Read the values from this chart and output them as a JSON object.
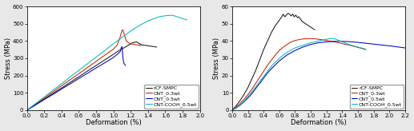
{
  "left_plot": {
    "xlabel": "Deformation (%)",
    "ylabel": "Stress (MPa)",
    "xlim": [
      0.0,
      2.0
    ],
    "ylim": [
      0,
      600
    ],
    "xticks": [
      0.0,
      0.2,
      0.4,
      0.6,
      0.8,
      1.0,
      1.2,
      1.4,
      1.6,
      1.8,
      2.0
    ],
    "yticks": [
      0,
      100,
      200,
      300,
      400,
      500,
      600
    ],
    "series": [
      {
        "label": "rCF-SMPC",
        "color": "#1a1a1a",
        "points": [
          [
            0.0,
            0
          ],
          [
            0.1,
            32
          ],
          [
            0.2,
            64
          ],
          [
            0.3,
            96
          ],
          [
            0.4,
            128
          ],
          [
            0.5,
            161
          ],
          [
            0.6,
            193
          ],
          [
            0.7,
            226
          ],
          [
            0.8,
            258
          ],
          [
            0.9,
            291
          ],
          [
            1.0,
            323
          ],
          [
            1.05,
            340
          ],
          [
            1.1,
            355
          ],
          [
            1.15,
            368
          ],
          [
            1.18,
            378
          ],
          [
            1.2,
            383
          ],
          [
            1.22,
            390
          ],
          [
            1.25,
            393
          ],
          [
            1.27,
            395
          ],
          [
            1.29,
            388
          ],
          [
            1.31,
            382
          ],
          [
            1.33,
            378
          ],
          [
            1.35,
            376
          ],
          [
            1.38,
            374
          ],
          [
            1.42,
            371
          ],
          [
            1.46,
            368
          ],
          [
            1.5,
            365
          ]
        ]
      },
      {
        "label": "CNT_0.3wt",
        "color": "#cc2200",
        "points": [
          [
            0.0,
            0
          ],
          [
            0.1,
            35
          ],
          [
            0.2,
            70
          ],
          [
            0.3,
            105
          ],
          [
            0.4,
            141
          ],
          [
            0.5,
            176
          ],
          [
            0.6,
            211
          ],
          [
            0.7,
            247
          ],
          [
            0.8,
            282
          ],
          [
            0.9,
            318
          ],
          [
            1.0,
            353
          ],
          [
            1.04,
            375
          ],
          [
            1.07,
            410
          ],
          [
            1.09,
            445
          ],
          [
            1.1,
            462
          ],
          [
            1.11,
            465
          ],
          [
            1.13,
            430
          ],
          [
            1.15,
            400
          ],
          [
            1.18,
            388
          ],
          [
            1.22,
            382
          ],
          [
            1.27,
            378
          ],
          [
            1.32,
            374
          ]
        ]
      },
      {
        "label": "CNT_0.5wt",
        "color": "#0000bb",
        "points": [
          [
            0.0,
            0
          ],
          [
            0.1,
            30
          ],
          [
            0.2,
            61
          ],
          [
            0.3,
            91
          ],
          [
            0.4,
            122
          ],
          [
            0.5,
            152
          ],
          [
            0.6,
            183
          ],
          [
            0.7,
            213
          ],
          [
            0.8,
            244
          ],
          [
            0.9,
            274
          ],
          [
            1.0,
            305
          ],
          [
            1.05,
            325
          ],
          [
            1.08,
            340
          ],
          [
            1.09,
            360
          ],
          [
            1.1,
            368
          ],
          [
            1.11,
            300
          ],
          [
            1.12,
            272
          ],
          [
            1.14,
            258
          ]
        ]
      },
      {
        "label": "CNT-COOH_0.5wt",
        "color": "#00bbbb",
        "points": [
          [
            0.0,
            0
          ],
          [
            0.1,
            38
          ],
          [
            0.2,
            76
          ],
          [
            0.3,
            115
          ],
          [
            0.4,
            153
          ],
          [
            0.5,
            192
          ],
          [
            0.6,
            230
          ],
          [
            0.7,
            268
          ],
          [
            0.8,
            307
          ],
          [
            0.9,
            345
          ],
          [
            1.0,
            384
          ],
          [
            1.1,
            422
          ],
          [
            1.2,
            458
          ],
          [
            1.3,
            490
          ],
          [
            1.4,
            516
          ],
          [
            1.5,
            536
          ],
          [
            1.55,
            542
          ],
          [
            1.6,
            546
          ],
          [
            1.65,
            548
          ],
          [
            1.68,
            549
          ],
          [
            1.7,
            546
          ],
          [
            1.72,
            543
          ],
          [
            1.75,
            538
          ],
          [
            1.8,
            530
          ],
          [
            1.85,
            522
          ]
        ]
      }
    ]
  },
  "right_plot": {
    "xlabel": "Deformation (%)",
    "ylabel": "Stress (MPa)",
    "xlim": [
      0.0,
      2.2
    ],
    "ylim": [
      0,
      60
    ],
    "xticks": [
      0.0,
      0.2,
      0.4,
      0.6,
      0.8,
      1.0,
      1.2,
      1.4,
      1.6,
      1.8,
      2.0,
      2.2
    ],
    "yticks": [
      0,
      10,
      20,
      30,
      40,
      50,
      60
    ],
    "series": [
      {
        "label": "rCF-SMPC",
        "color": "#1a1a1a",
        "points": [
          [
            0.0,
            0
          ],
          [
            0.05,
            2.5
          ],
          [
            0.1,
            5.5
          ],
          [
            0.15,
            9
          ],
          [
            0.2,
            13
          ],
          [
            0.25,
            18
          ],
          [
            0.3,
            23
          ],
          [
            0.35,
            29
          ],
          [
            0.4,
            35
          ],
          [
            0.45,
            40
          ],
          [
            0.5,
            45
          ],
          [
            0.55,
            49
          ],
          [
            0.6,
            52
          ],
          [
            0.63,
            54
          ],
          [
            0.65,
            55.5
          ],
          [
            0.67,
            54
          ],
          [
            0.69,
            55
          ],
          [
            0.71,
            56
          ],
          [
            0.73,
            55.5
          ],
          [
            0.75,
            54.5
          ],
          [
            0.77,
            55.5
          ],
          [
            0.79,
            54
          ],
          [
            0.81,
            55
          ],
          [
            0.83,
            53.5
          ],
          [
            0.85,
            54
          ],
          [
            0.87,
            52.5
          ],
          [
            0.9,
            51
          ],
          [
            0.95,
            49.5
          ],
          [
            1.0,
            48
          ],
          [
            1.05,
            46.5
          ]
        ]
      },
      {
        "label": "CNT_0.3wt",
        "color": "#cc2200",
        "points": [
          [
            0.0,
            0
          ],
          [
            0.05,
            1.8
          ],
          [
            0.1,
            3.8
          ],
          [
            0.15,
            6.2
          ],
          [
            0.2,
            9
          ],
          [
            0.25,
            12
          ],
          [
            0.3,
            15.5
          ],
          [
            0.35,
            19
          ],
          [
            0.4,
            22.5
          ],
          [
            0.45,
            26
          ],
          [
            0.5,
            29
          ],
          [
            0.55,
            32
          ],
          [
            0.6,
            34.5
          ],
          [
            0.65,
            36.5
          ],
          [
            0.7,
            38
          ],
          [
            0.75,
            39.5
          ],
          [
            0.8,
            40.3
          ],
          [
            0.85,
            40.8
          ],
          [
            0.9,
            41.2
          ],
          [
            0.95,
            41.3
          ],
          [
            1.0,
            41.4
          ],
          [
            1.05,
            41.3
          ],
          [
            1.1,
            41.0
          ],
          [
            1.15,
            40.7
          ],
          [
            1.2,
            40.3
          ],
          [
            1.3,
            39.5
          ],
          [
            1.4,
            38.5
          ],
          [
            1.5,
            37.5
          ],
          [
            1.6,
            36.3
          ],
          [
            1.7,
            35.0
          ]
        ]
      },
      {
        "label": "CNT_0.5wt",
        "color": "#0000bb",
        "points": [
          [
            0.0,
            0
          ],
          [
            0.05,
            1.2
          ],
          [
            0.1,
            2.8
          ],
          [
            0.15,
            4.8
          ],
          [
            0.2,
            7
          ],
          [
            0.25,
            9.5
          ],
          [
            0.3,
            12.5
          ],
          [
            0.35,
            15.5
          ],
          [
            0.4,
            18.5
          ],
          [
            0.45,
            21.5
          ],
          [
            0.5,
            24
          ],
          [
            0.6,
            28.5
          ],
          [
            0.7,
            32
          ],
          [
            0.8,
            34.5
          ],
          [
            0.9,
            36.5
          ],
          [
            1.0,
            38
          ],
          [
            1.1,
            39
          ],
          [
            1.2,
            39.5
          ],
          [
            1.3,
            39.8
          ],
          [
            1.4,
            39.8
          ],
          [
            1.5,
            39.6
          ],
          [
            1.6,
            39.2
          ],
          [
            1.7,
            38.7
          ],
          [
            1.8,
            38.2
          ],
          [
            1.9,
            37.7
          ],
          [
            2.0,
            37.2
          ],
          [
            2.1,
            36.6
          ],
          [
            2.2,
            36.0
          ]
        ]
      },
      {
        "label": "CNT-COOH_0.5wt",
        "color": "#00bbbb",
        "points": [
          [
            0.0,
            0
          ],
          [
            0.05,
            1.3
          ],
          [
            0.1,
            3
          ],
          [
            0.15,
            5.2
          ],
          [
            0.2,
            7.8
          ],
          [
            0.25,
            10.5
          ],
          [
            0.3,
            13.5
          ],
          [
            0.35,
            16.5
          ],
          [
            0.4,
            19.5
          ],
          [
            0.45,
            22.5
          ],
          [
            0.5,
            25.5
          ],
          [
            0.6,
            30
          ],
          [
            0.7,
            33.5
          ],
          [
            0.8,
            36
          ],
          [
            0.9,
            37.5
          ],
          [
            1.0,
            39
          ],
          [
            1.1,
            40
          ],
          [
            1.2,
            41
          ],
          [
            1.25,
            41.5
          ],
          [
            1.3,
            41.3
          ],
          [
            1.35,
            40.5
          ],
          [
            1.4,
            39.5
          ],
          [
            1.5,
            37.8
          ],
          [
            1.6,
            36.5
          ],
          [
            1.7,
            35.3
          ]
        ]
      }
    ]
  },
  "legend_fontsize": 4.5,
  "axis_fontsize": 6,
  "tick_fontsize": 5,
  "linewidth": 0.75,
  "fig_facecolor": "#e8e8e8",
  "ax_facecolor": "#ffffff"
}
